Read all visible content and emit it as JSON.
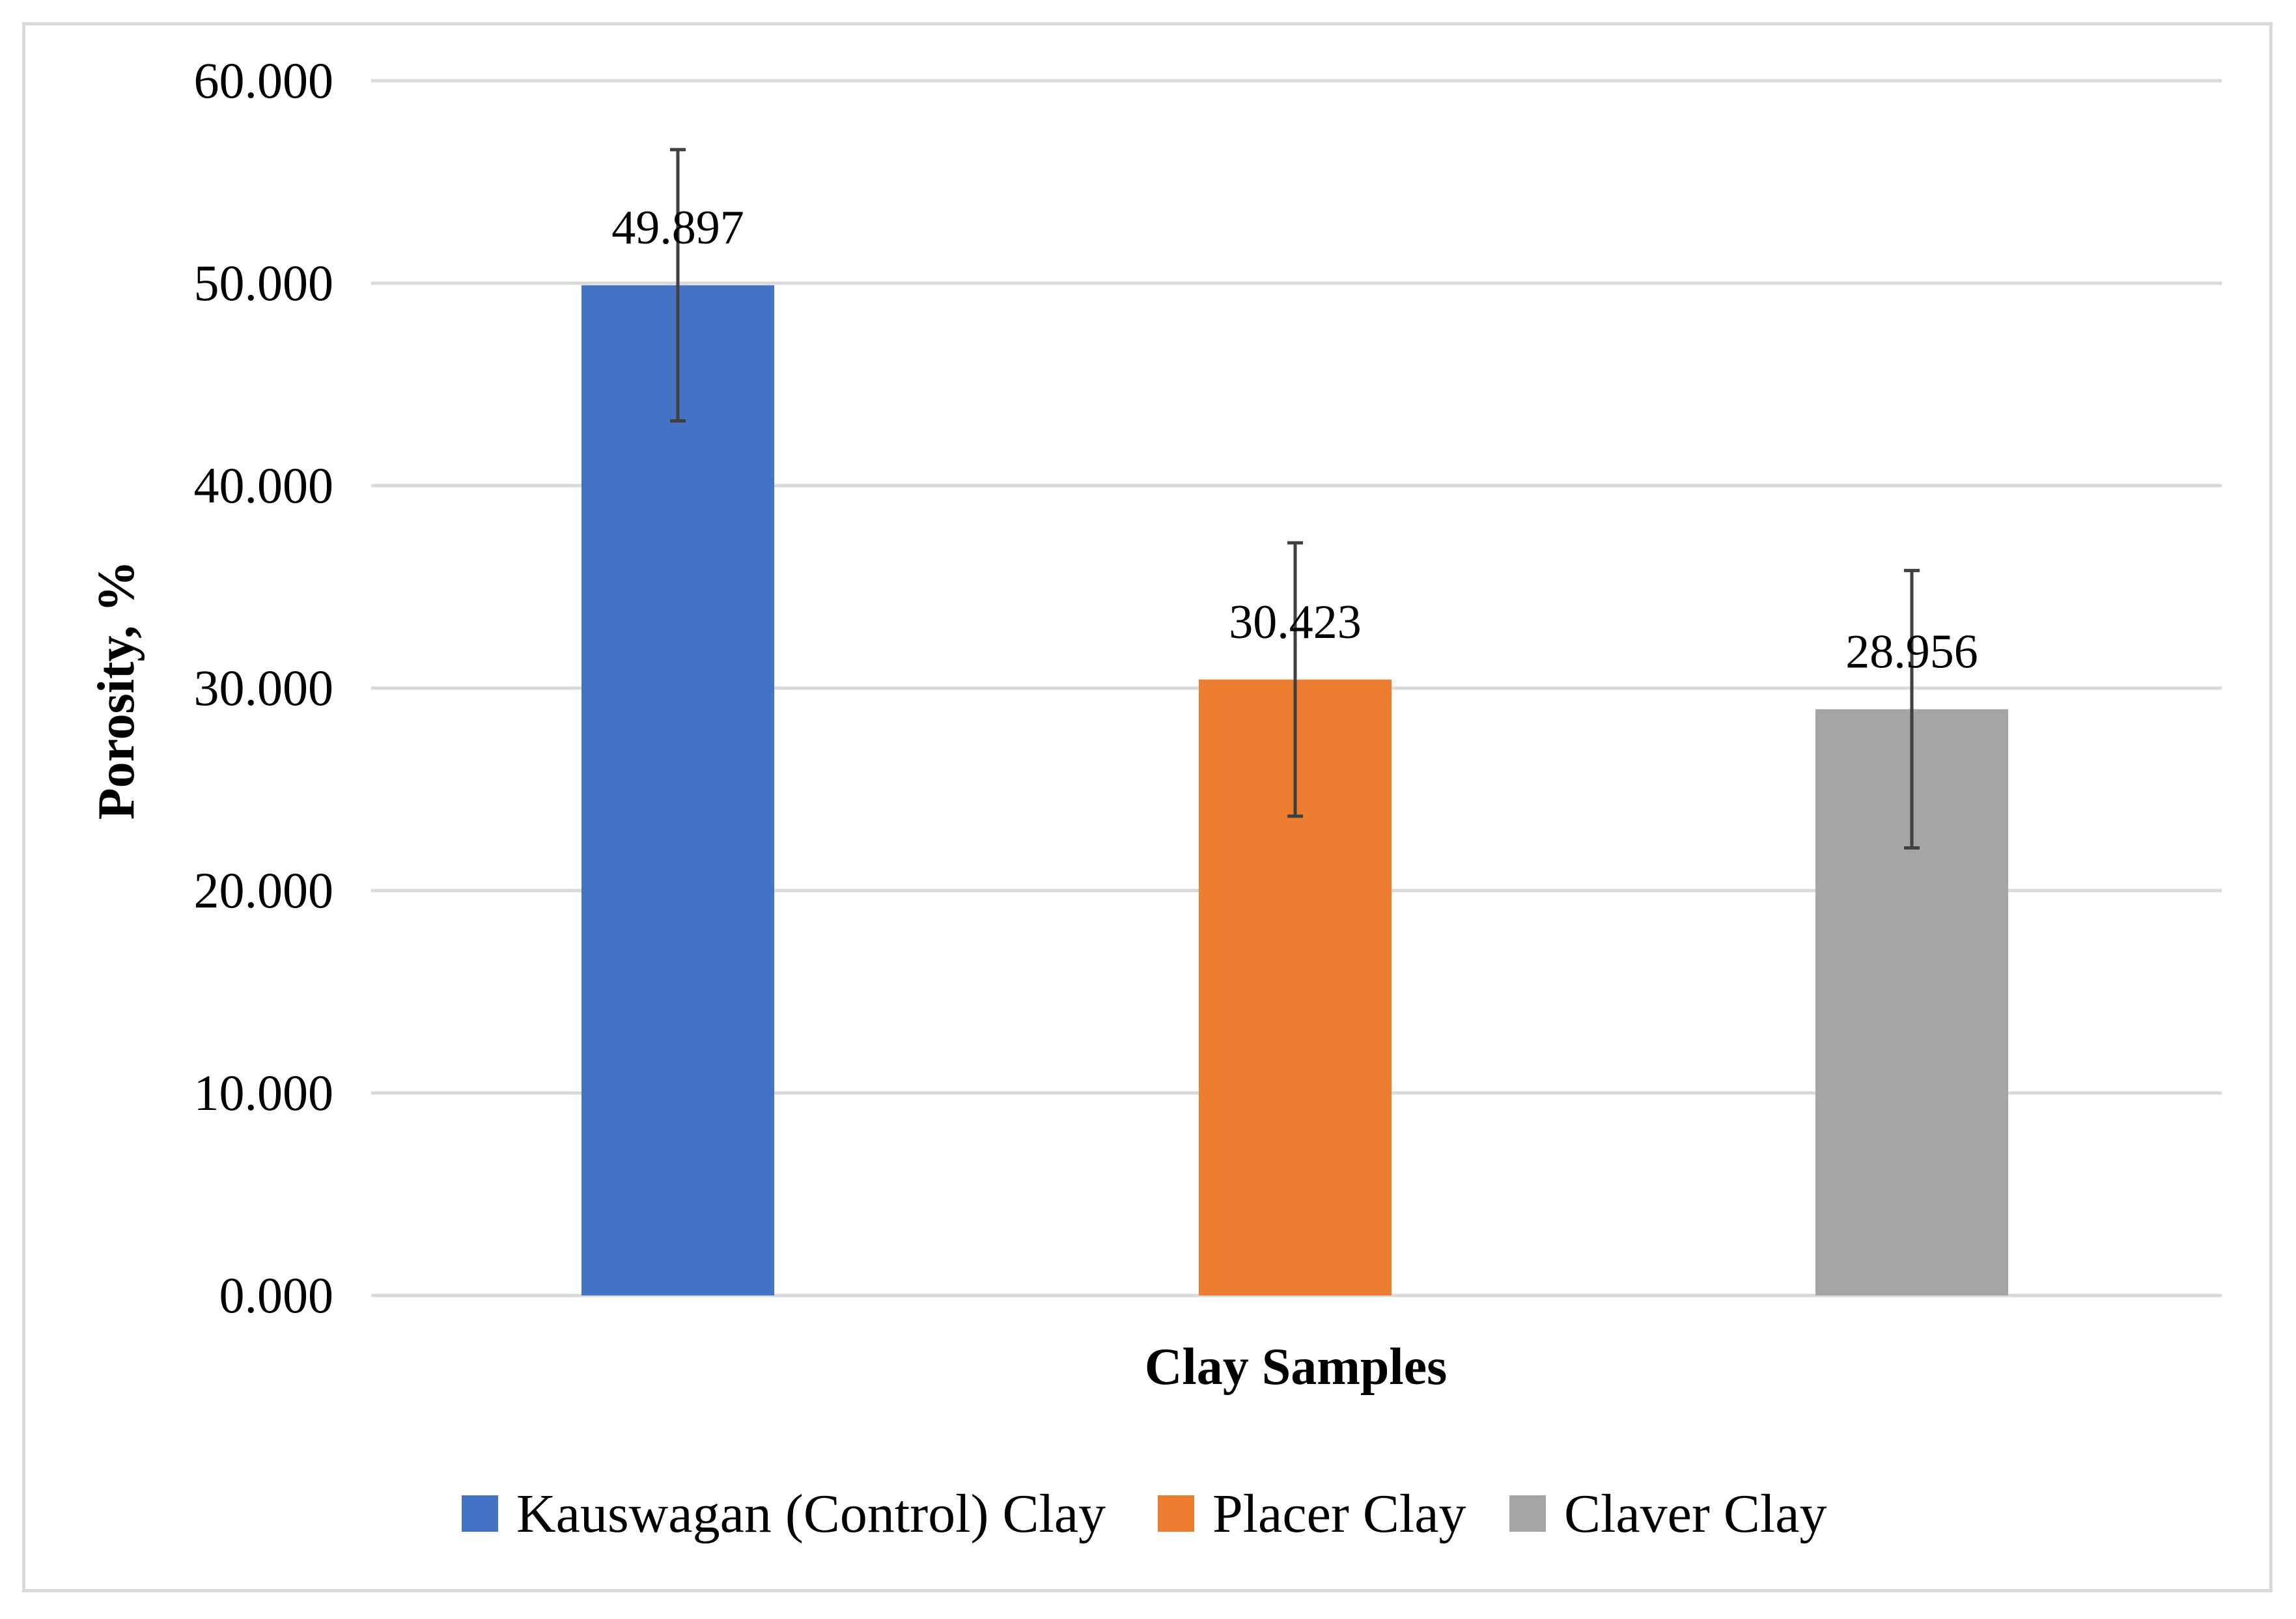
{
  "chart_data": {
    "type": "bar",
    "title": "",
    "xlabel": "Clay Samples",
    "ylabel": "Porosity, %",
    "ylim": [
      0,
      60
    ],
    "yticks": [
      0,
      10,
      20,
      30,
      40,
      50,
      60
    ],
    "ytick_labels": [
      "0.000",
      "10.000",
      "20.000",
      "30.000",
      "40.000",
      "50.000",
      "60.000"
    ],
    "grid": true,
    "legend_position": "bottom",
    "series": [
      {
        "name": "Kauswagan (Control) Clay",
        "value": 49.897,
        "label": "49.897",
        "error": 6.7,
        "color": "#4472c4"
      },
      {
        "name": "Placer Clay",
        "value": 30.423,
        "label": "30.423",
        "error": 6.75,
        "color": "#ed7d31"
      },
      {
        "name": "Claver Clay",
        "value": 28.956,
        "label": "28.956",
        "error": 6.85,
        "color": "#a5a5a5"
      }
    ]
  }
}
